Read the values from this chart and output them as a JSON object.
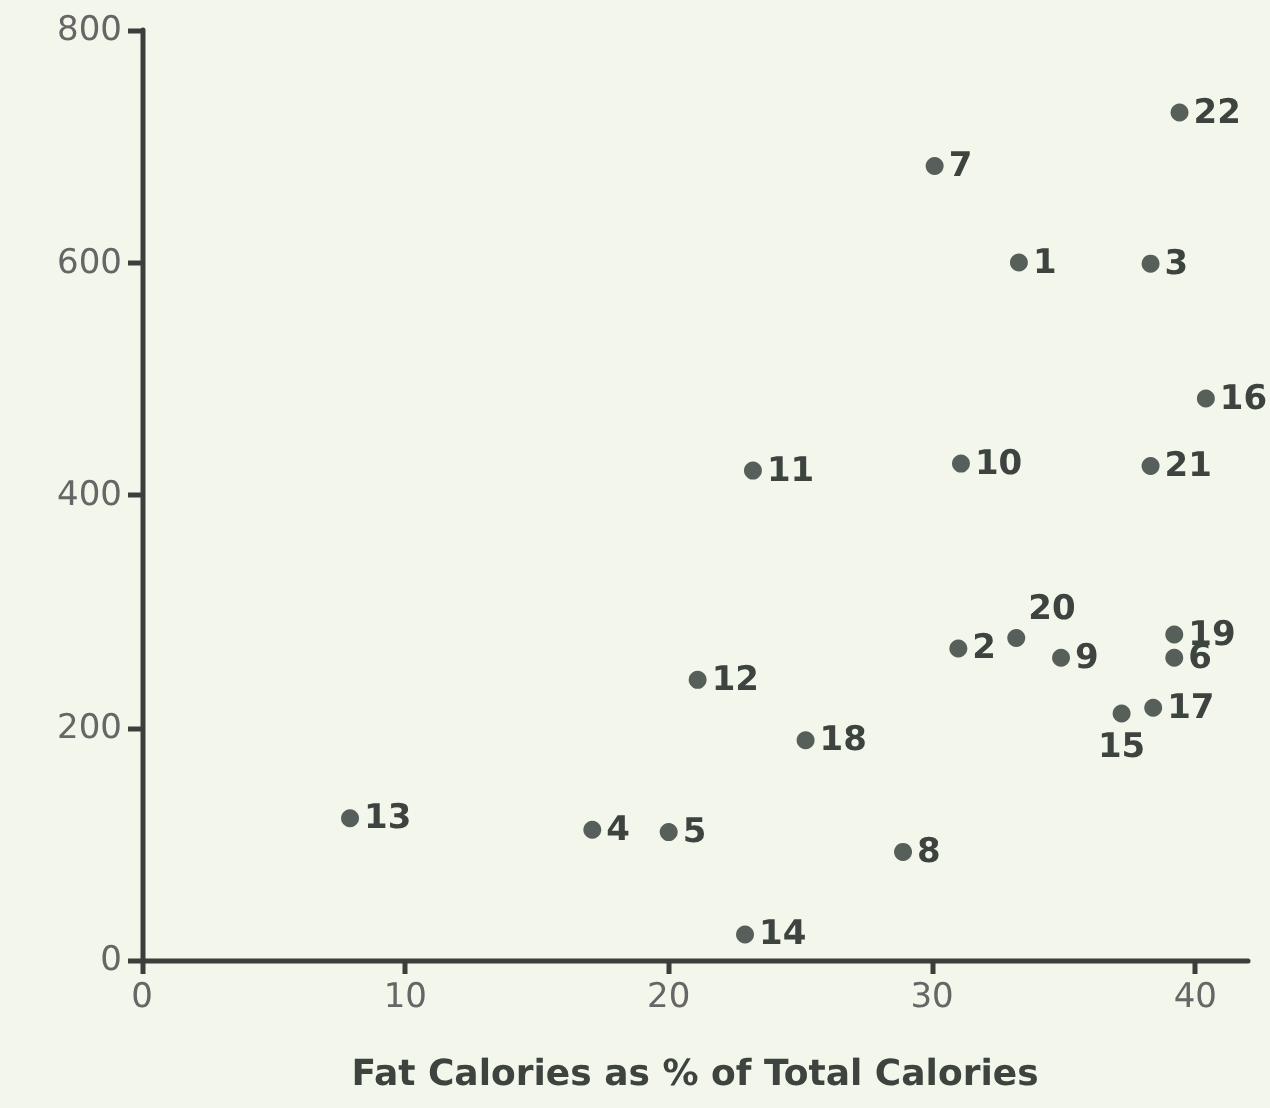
{
  "chart_data": {
    "type": "scatter",
    "xlabel": "Fat Calories as % of Total Calories",
    "x": [
      33.3,
      31.0,
      38.3,
      17.1,
      20.0,
      39.2,
      30.1,
      28.9,
      34.9,
      31.1,
      23.2,
      21.1,
      7.9,
      22.9,
      37.2,
      40.4,
      38.4,
      25.2,
      39.2,
      33.2,
      38.3,
      39.4
    ],
    "values": [
      600,
      268,
      599,
      112,
      110,
      260,
      683,
      93,
      260,
      427,
      421,
      241,
      122,
      22,
      212,
      483,
      217,
      189,
      280,
      277,
      425,
      729
    ],
    "color": "#2f3a36",
    "marker": "circle",
    "grid": false,
    "xlim": [
      0,
      42
    ],
    "xticks": [
      0,
      10,
      20,
      30,
      40
    ],
    "ylim": [
      0,
      800
    ],
    "yticks": [
      0,
      200,
      400,
      600,
      800
    ],
    "annotations": [
      {
        "text": "1",
        "x": 33.3,
        "y": 600
      },
      {
        "text": "2",
        "x": 31.0,
        "y": 268
      },
      {
        "text": "3",
        "x": 38.3,
        "y": 599
      },
      {
        "text": "4",
        "x": 17.1,
        "y": 112
      },
      {
        "text": "5",
        "x": 20.0,
        "y": 110
      },
      {
        "text": "6",
        "x": 39.2,
        "y": 260
      },
      {
        "text": "7",
        "x": 30.1,
        "y": 683
      },
      {
        "text": "8",
        "x": 28.9,
        "y": 93
      },
      {
        "text": "9",
        "x": 34.9,
        "y": 260
      },
      {
        "text": "10",
        "x": 31.1,
        "y": 427
      },
      {
        "text": "11",
        "x": 23.2,
        "y": 421
      },
      {
        "text": "12",
        "x": 21.1,
        "y": 241
      },
      {
        "text": "13",
        "x": 7.9,
        "y": 122
      },
      {
        "text": "14",
        "x": 22.9,
        "y": 22
      },
      {
        "text": "15",
        "x": 37.2,
        "y": 212
      },
      {
        "text": "16",
        "x": 40.4,
        "y": 483
      },
      {
        "text": "17",
        "x": 38.4,
        "y": 217
      },
      {
        "text": "18",
        "x": 25.2,
        "y": 189
      },
      {
        "text": "19",
        "x": 39.2,
        "y": 280
      },
      {
        "text": "20",
        "x": 33.2,
        "y": 277
      },
      {
        "text": "21",
        "x": 38.3,
        "y": 425
      },
      {
        "text": "22",
        "x": 39.4,
        "y": 729
      }
    ]
  }
}
